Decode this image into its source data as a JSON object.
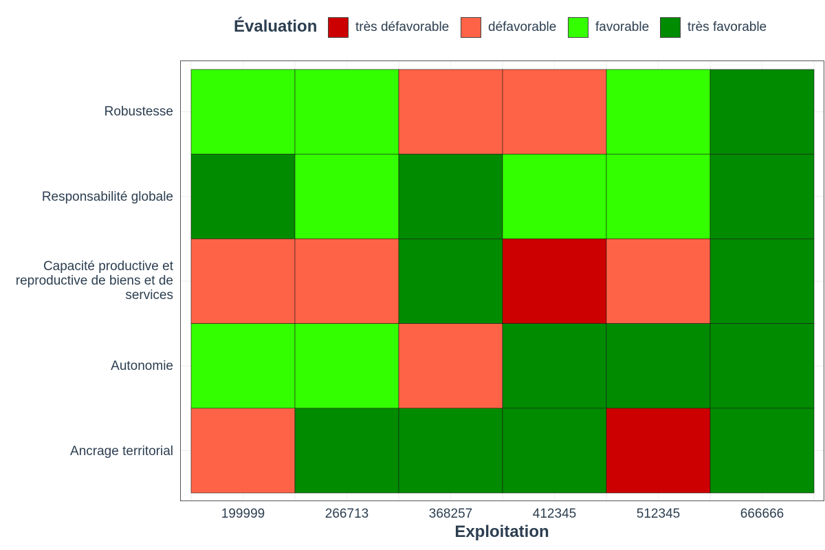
{
  "chart_data": {
    "type": "heatmap",
    "xlabel": "Exploitation",
    "ylabel": "",
    "x_categories": [
      "199999",
      "266713",
      "368257",
      "412345",
      "512345",
      "666666"
    ],
    "y_categories": [
      "Robustesse",
      "Responsabilité globale",
      "Capacité productive et reproductive de biens et de services",
      "Autonomie",
      "Ancrage territorial"
    ],
    "legend": {
      "title": "Évaluation",
      "placement": "top",
      "levels": [
        {
          "label": "très défavorable",
          "color": "#cc0000"
        },
        {
          "label": "défavorable",
          "color": "#ff6347"
        },
        {
          "label": "favorable",
          "color": "#33ff00"
        },
        {
          "label": "très favorable",
          "color": "#008b00"
        }
      ]
    },
    "values": [
      [
        "favorable",
        "favorable",
        "défavorable",
        "défavorable",
        "favorable",
        "très favorable"
      ],
      [
        "très favorable",
        "favorable",
        "très favorable",
        "favorable",
        "favorable",
        "très favorable"
      ],
      [
        "défavorable",
        "défavorable",
        "très favorable",
        "très défavorable",
        "défavorable",
        "très favorable"
      ],
      [
        "favorable",
        "favorable",
        "défavorable",
        "très favorable",
        "très favorable",
        "très favorable"
      ],
      [
        "défavorable",
        "très favorable",
        "très favorable",
        "très favorable",
        "très défavorable",
        "très favorable"
      ]
    ],
    "grid": true
  }
}
